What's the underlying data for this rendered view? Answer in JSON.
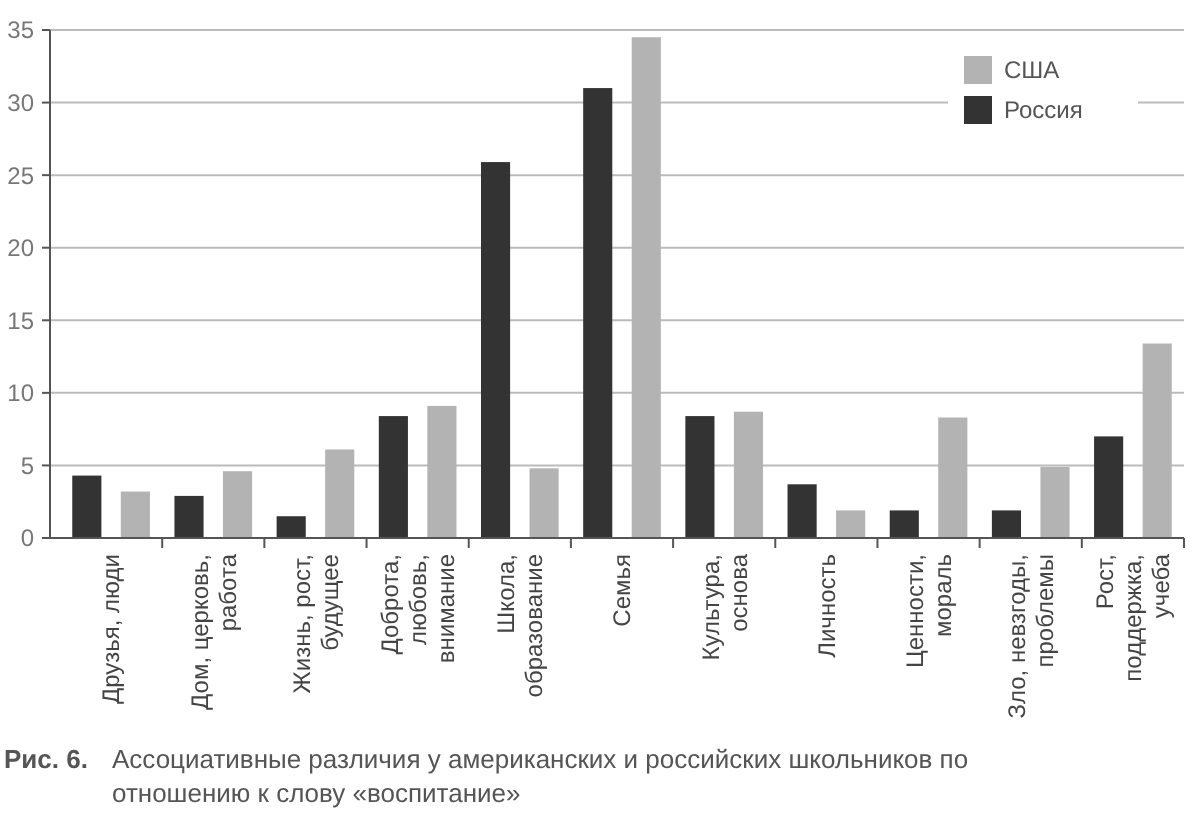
{
  "chart_data": {
    "type": "bar",
    "categories": [
      "Друзья, люди",
      "Дом, церковь, работа",
      "Жизнь, рост, будущее",
      "Доброта, любовь, внимание",
      "Школа, образование",
      "Семья",
      "Культура, основа",
      "Личность",
      "Ценности, мораль",
      "Зло, невзгоды, проблемы",
      "Рост, поддержка, учеба"
    ],
    "series": [
      {
        "name": "Россия",
        "color": "#333333",
        "values": [
          4.3,
          2.9,
          1.5,
          8.4,
          25.9,
          31,
          8.4,
          3.7,
          1.9,
          1.9,
          7
        ]
      },
      {
        "name": "США",
        "color": "#b3b3b3",
        "values": [
          3.2,
          4.6,
          6.1,
          9.1,
          4.8,
          34.5,
          8.7,
          1.9,
          8.3,
          4.9,
          13.4
        ]
      }
    ],
    "ylim": [
      0,
      35
    ],
    "yticks": [
      0,
      5,
      10,
      15,
      20,
      25,
      30,
      35
    ],
    "grid": "y",
    "legend": "top right",
    "annotations": [
      "Рис. 6.",
      "Ассоциативные различия у американских и российских школьников по отношению к слову «воспитание»"
    ]
  }
}
